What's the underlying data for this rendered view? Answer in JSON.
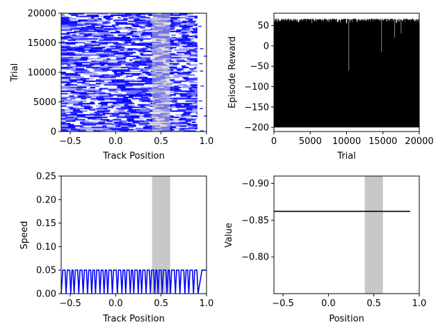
{
  "chart_data": [
    {
      "id": "p1",
      "type": "heatmap",
      "xlabel": "Track Position",
      "ylabel": "Trial",
      "xlim": [
        -0.6,
        1.0
      ],
      "ylim": [
        0,
        20000
      ],
      "xticks": [
        -0.5,
        0.0,
        0.5,
        1.0
      ],
      "xtick_labels": [
        "−0.5",
        "0.0",
        "0.5",
        "1.0"
      ],
      "yticks": [
        0,
        5000,
        10000,
        15000,
        20000
      ],
      "ytick_labels": [
        "0",
        "5000",
        "10000",
        "15000",
        "20000"
      ],
      "shade": [
        0.4,
        0.6
      ],
      "colors": {
        "low": "#ffffff",
        "high": "#0000ff",
        "shade": "#c8c8c8"
      },
      "grid": false
    },
    {
      "id": "p2",
      "type": "line",
      "xlabel": "Trial",
      "ylabel": "Episode Reward",
      "xlim": [
        0,
        20000
      ],
      "ylim": [
        -210,
        80
      ],
      "xticks": [
        0,
        5000,
        10000,
        15000,
        20000
      ],
      "xtick_labels": [
        "0",
        "5000",
        "10000",
        "15000",
        "20000"
      ],
      "yticks": [
        -200,
        -150,
        -100,
        -50,
        0,
        50
      ],
      "ytick_labels": [
        "−200",
        "−150",
        "−100",
        "−50",
        "0",
        "50"
      ],
      "reward_band": [
        -200,
        65
      ],
      "colors": {
        "line": "#000000"
      },
      "grid": false
    },
    {
      "id": "p3",
      "type": "line",
      "xlabel": "Track Position",
      "ylabel": "Speed",
      "xlim": [
        -0.6,
        1.0
      ],
      "ylim": [
        0,
        0.25
      ],
      "xticks": [
        -0.5,
        0.0,
        0.5,
        1.0
      ],
      "xtick_labels": [
        "−0.5",
        "0.0",
        "0.5",
        "1.0"
      ],
      "yticks": [
        0.0,
        0.05,
        0.1,
        0.15,
        0.2,
        0.25
      ],
      "ytick_labels": [
        "0.00",
        "0.05",
        "0.10",
        "0.15",
        "0.20",
        "0.25"
      ],
      "shade": [
        0.4,
        0.6
      ],
      "max_speed": 0.05,
      "colors": {
        "line": "#0000ff",
        "shade": "#c8c8c8"
      },
      "grid": false
    },
    {
      "id": "p4",
      "type": "line",
      "xlabel": "Position",
      "ylabel": "Value",
      "xlim": [
        -0.6,
        1.0
      ],
      "ylim": [
        -0.75,
        -0.91
      ],
      "xticks": [
        -0.5,
        0.0,
        0.5,
        1.0
      ],
      "xtick_labels": [
        "−0.5",
        "0.0",
        "0.5",
        "1.0"
      ],
      "yticks": [
        -0.9,
        -0.85,
        -0.8
      ],
      "ytick_labels": [
        "−0.90",
        "−0.85",
        "−0.80"
      ],
      "shade": [
        0.4,
        0.6
      ],
      "x": [
        -0.6,
        0.9
      ],
      "y": [
        -0.862,
        -0.862
      ],
      "colors": {
        "line": "#000000",
        "shade": "#c8c8c8"
      },
      "grid": false
    }
  ]
}
